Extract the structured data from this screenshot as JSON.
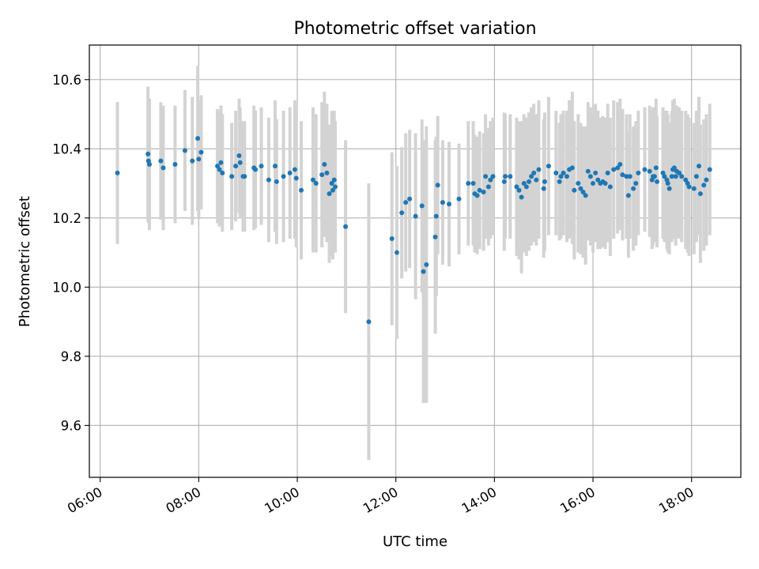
{
  "chart_data": {
    "type": "scatter",
    "title": "Photometric offset variation",
    "xlabel": "UTC time",
    "ylabel": "Photometric offset",
    "x_unit": "hours UTC",
    "xlim": [
      5.78,
      19.0
    ],
    "ylim": [
      9.45,
      10.7
    ],
    "xticks": [
      6,
      8,
      10,
      12,
      14,
      16,
      18
    ],
    "xtick_labels": [
      "06:00",
      "08:00",
      "10:00",
      "12:00",
      "14:00",
      "16:00",
      "18:00"
    ],
    "yticks": [
      9.6,
      9.8,
      10.0,
      10.2,
      10.4,
      10.6
    ],
    "ytick_labels": [
      "9.6",
      "9.8",
      "10.0",
      "10.2",
      "10.4",
      "10.6"
    ],
    "grid": true,
    "marker_color": "#1f77b4",
    "errorbar_color": "#d3d3d3",
    "series": [
      {
        "x": [
          6.35,
          6.97,
          6.98,
          7.0,
          7.23,
          7.28,
          7.52,
          7.72,
          7.87,
          7.98,
          8.0,
          8.05,
          8.38,
          8.42,
          8.45,
          8.48,
          8.67,
          8.75,
          8.82,
          8.84,
          8.9,
          8.93,
          9.12,
          9.15,
          9.27,
          9.42,
          9.55,
          9.58,
          9.72,
          9.85,
          9.95,
          9.98,
          10.08,
          10.32,
          10.38,
          10.5,
          10.55,
          10.6,
          10.65,
          10.7,
          10.72,
          10.75,
          10.77,
          10.98,
          11.45,
          11.92,
          12.02,
          12.12,
          12.2,
          12.28,
          12.4,
          12.53,
          12.56,
          12.62,
          12.8,
          12.82,
          12.85,
          12.95,
          13.08,
          13.28,
          13.47,
          13.57,
          13.6,
          13.65,
          13.7,
          13.78,
          13.82,
          13.88,
          13.92,
          13.97,
          14.2,
          14.22,
          14.32,
          14.45,
          14.5,
          14.55,
          14.6,
          14.65,
          14.7,
          14.75,
          14.8,
          14.85,
          14.9,
          15.0,
          15.02,
          15.1,
          15.25,
          15.32,
          15.35,
          15.4,
          15.47,
          15.52,
          15.58,
          15.62,
          15.7,
          15.75,
          15.8,
          15.85,
          15.9,
          15.95,
          16.0,
          16.05,
          16.1,
          16.15,
          16.2,
          16.25,
          16.3,
          16.35,
          16.42,
          16.5,
          16.55,
          16.6,
          16.68,
          16.72,
          16.75,
          16.82,
          16.87,
          16.92,
          17.05,
          17.15,
          17.2,
          17.22,
          17.25,
          17.28,
          17.3,
          17.42,
          17.45,
          17.5,
          17.52,
          17.55,
          17.6,
          17.62,
          17.65,
          17.68,
          17.7,
          17.75,
          17.8,
          17.88,
          17.92,
          17.95,
          18.05,
          18.1,
          18.15,
          18.18,
          18.25,
          18.3,
          18.37
        ],
        "y": [
          10.33,
          10.385,
          10.365,
          10.355,
          10.365,
          10.345,
          10.355,
          10.395,
          10.365,
          10.43,
          10.37,
          10.39,
          10.35,
          10.34,
          10.36,
          10.33,
          10.32,
          10.35,
          10.38,
          10.36,
          10.32,
          10.32,
          10.345,
          10.34,
          10.35,
          10.31,
          10.35,
          10.305,
          10.32,
          10.33,
          10.34,
          10.315,
          10.28,
          10.31,
          10.3,
          10.325,
          10.355,
          10.33,
          10.27,
          10.3,
          10.28,
          10.31,
          10.29,
          10.175,
          9.9,
          10.14,
          10.1,
          10.215,
          10.245,
          10.255,
          10.205,
          10.235,
          10.045,
          10.065,
          10.145,
          10.205,
          10.295,
          10.245,
          10.24,
          10.255,
          10.3,
          10.3,
          10.27,
          10.265,
          10.28,
          10.275,
          10.32,
          10.29,
          10.31,
          10.32,
          10.305,
          10.32,
          10.32,
          10.29,
          10.28,
          10.26,
          10.3,
          10.29,
          10.305,
          10.32,
          10.33,
          10.31,
          10.34,
          10.285,
          10.305,
          10.35,
          10.33,
          10.305,
          10.32,
          10.33,
          10.32,
          10.34,
          10.345,
          10.28,
          10.3,
          10.285,
          10.275,
          10.265,
          10.335,
          10.32,
          10.3,
          10.33,
          10.31,
          10.3,
          10.305,
          10.3,
          10.33,
          10.29,
          10.34,
          10.345,
          10.355,
          10.325,
          10.32,
          10.265,
          10.32,
          10.285,
          10.3,
          10.33,
          10.34,
          10.335,
          10.31,
          10.32,
          10.32,
          10.345,
          10.305,
          10.33,
          10.32,
          10.31,
          10.3,
          10.285,
          10.32,
          10.34,
          10.345,
          10.32,
          10.335,
          10.33,
          10.32,
          10.31,
          10.3,
          10.29,
          10.285,
          10.32,
          10.35,
          10.27,
          10.295,
          10.31,
          10.34
        ],
        "err": [
          0.205,
          0.195,
          0.18,
          0.19,
          0.17,
          0.18,
          0.17,
          0.175,
          0.185,
          0.21,
          0.17,
          0.165,
          0.165,
          0.165,
          0.165,
          0.17,
          0.155,
          0.16,
          0.165,
          0.16,
          0.16,
          0.16,
          0.18,
          0.17,
          0.17,
          0.18,
          0.19,
          0.18,
          0.19,
          0.19,
          0.2,
          0.2,
          0.2,
          0.21,
          0.2,
          0.21,
          0.21,
          0.2,
          0.2,
          0.21,
          0.2,
          0.2,
          0.19,
          0.25,
          0.4,
          0.25,
          0.25,
          0.19,
          0.2,
          0.2,
          0.24,
          0.25,
          0.38,
          0.4,
          0.28,
          0.23,
          0.2,
          0.18,
          0.18,
          0.16,
          0.18,
          0.18,
          0.17,
          0.17,
          0.17,
          0.17,
          0.18,
          0.17,
          0.17,
          0.17,
          0.2,
          0.18,
          0.18,
          0.2,
          0.2,
          0.22,
          0.2,
          0.2,
          0.2,
          0.2,
          0.2,
          0.19,
          0.2,
          0.2,
          0.2,
          0.2,
          0.18,
          0.17,
          0.18,
          0.18,
          0.19,
          0.2,
          0.22,
          0.2,
          0.2,
          0.19,
          0.19,
          0.2,
          0.2,
          0.2,
          0.2,
          0.2,
          0.2,
          0.19,
          0.19,
          0.19,
          0.2,
          0.2,
          0.2,
          0.19,
          0.19,
          0.19,
          0.18,
          0.18,
          0.18,
          0.18,
          0.18,
          0.18,
          0.18,
          0.19,
          0.2,
          0.2,
          0.19,
          0.2,
          0.19,
          0.19,
          0.19,
          0.2,
          0.2,
          0.19,
          0.19,
          0.2,
          0.2,
          0.2,
          0.19,
          0.19,
          0.19,
          0.2,
          0.2,
          0.2,
          0.19,
          0.19,
          0.2,
          0.2,
          0.19,
          0.19,
          0.19
        ]
      }
    ]
  }
}
